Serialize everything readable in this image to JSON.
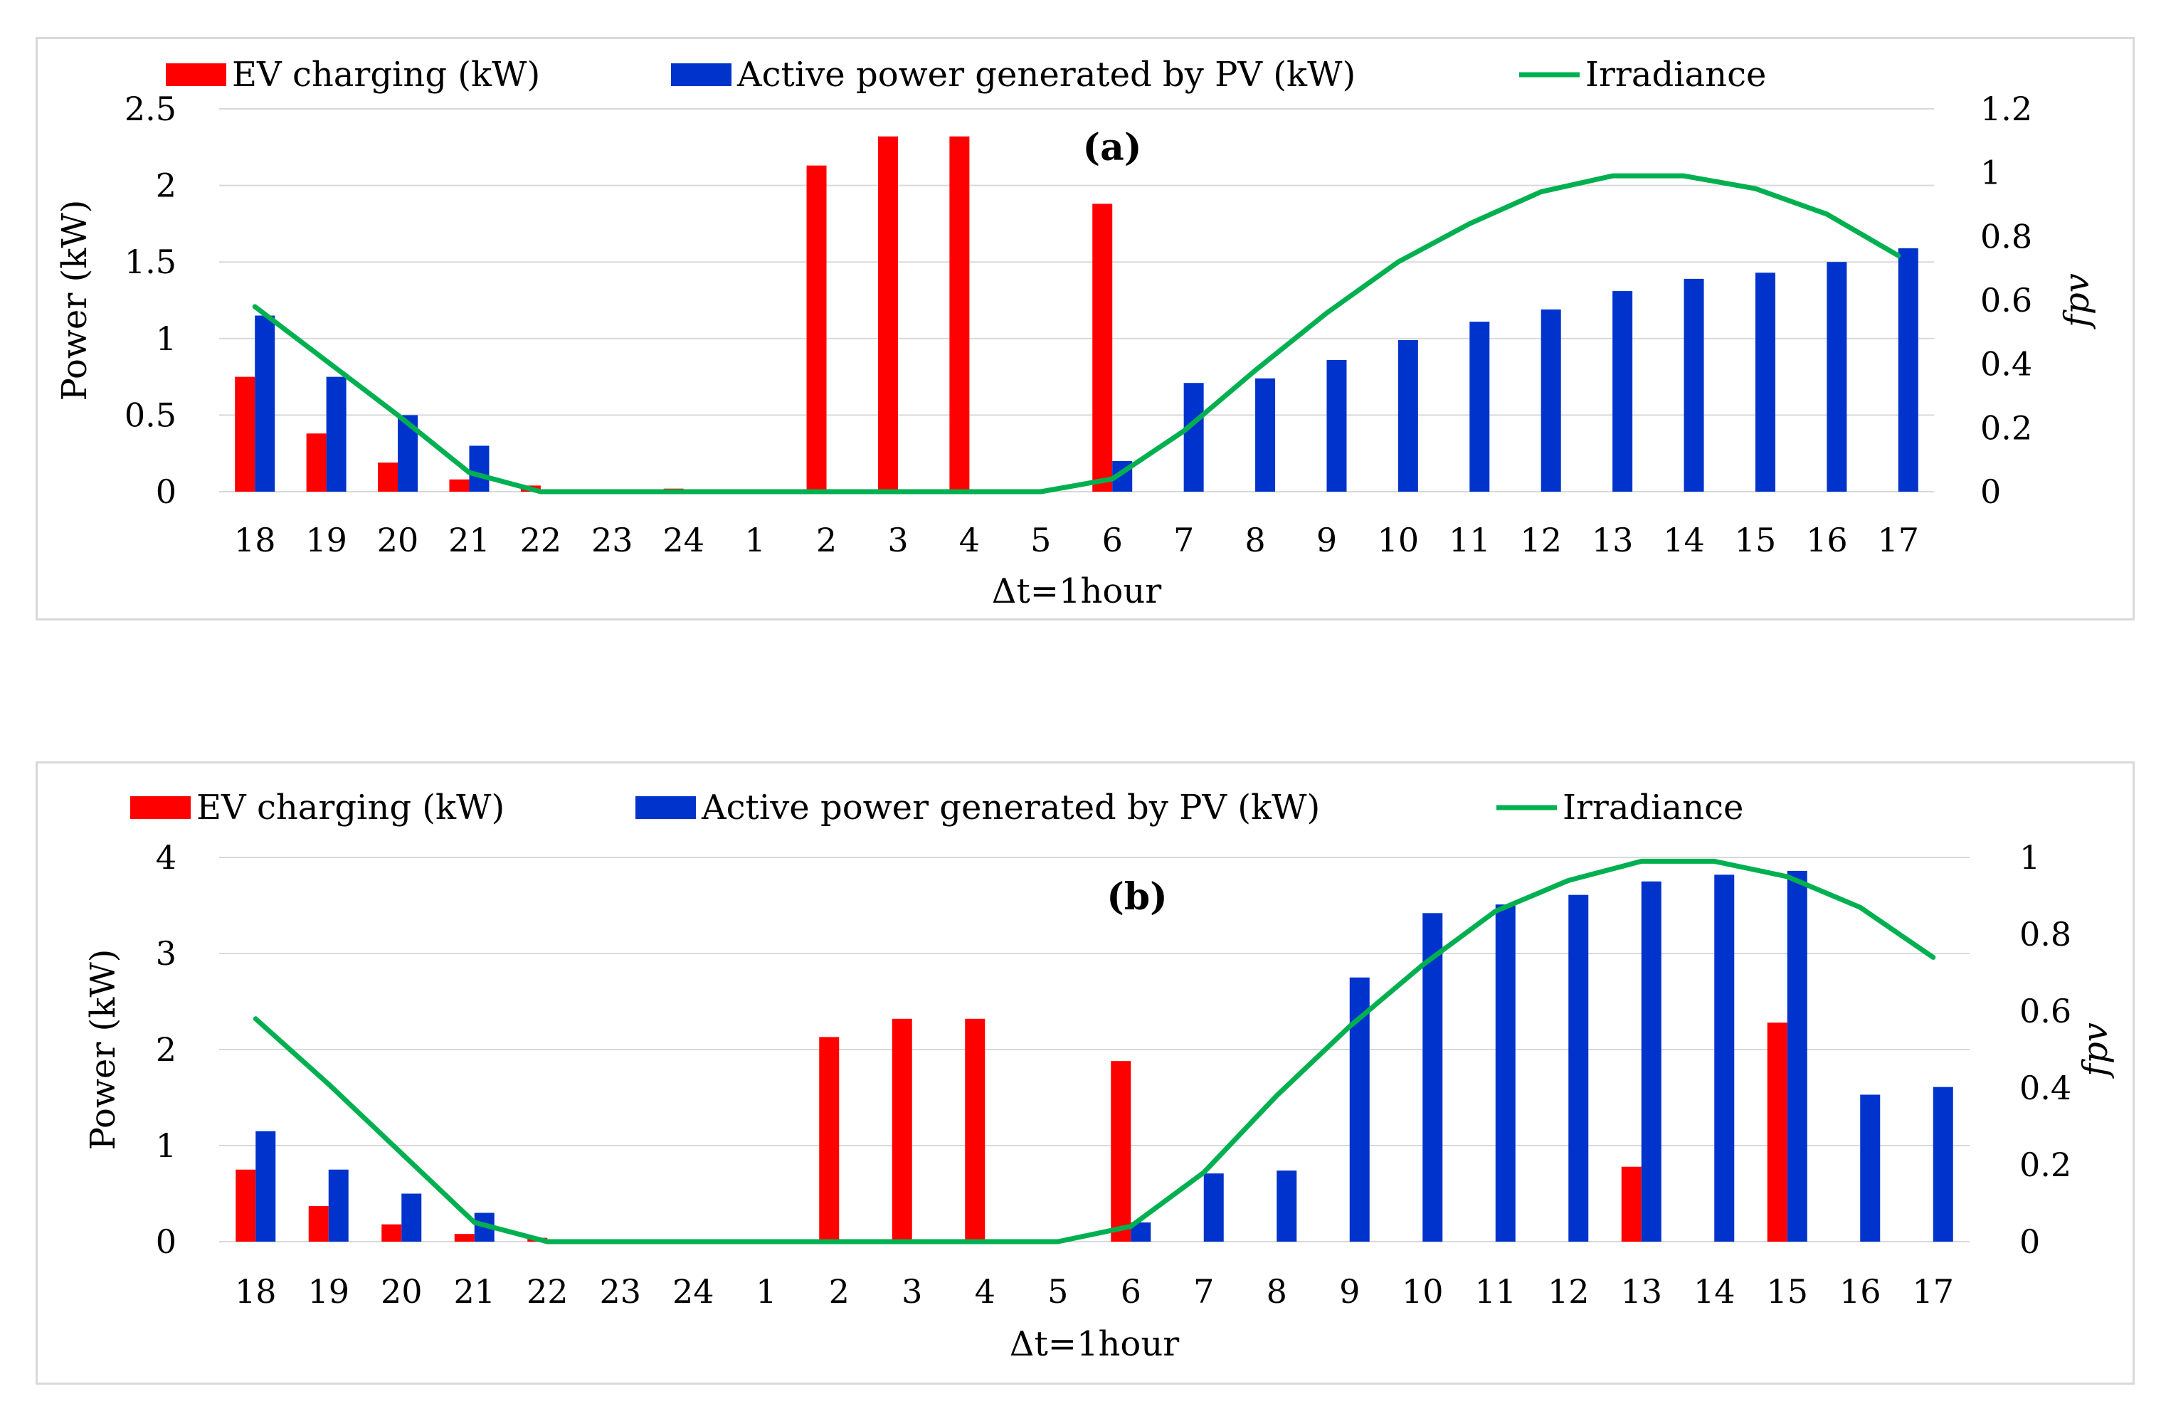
{
  "chart_data": [
    {
      "type": "bar",
      "panel_label": "(a)",
      "categories": [
        "18",
        "19",
        "20",
        "21",
        "22",
        "23",
        "24",
        "1",
        "2",
        "3",
        "4",
        "5",
        "6",
        "7",
        "8",
        "9",
        "10",
        "11",
        "12",
        "13",
        "14",
        "15",
        "16",
        "17"
      ],
      "series": [
        {
          "name": "EV charging (kW)",
          "type": "bar",
          "axis": "left",
          "color": "#ff0000",
          "values": [
            0.75,
            0.38,
            0.19,
            0.08,
            0.04,
            0.01,
            0.02,
            0,
            2.13,
            2.32,
            2.32,
            0,
            1.88,
            0,
            0,
            0,
            0,
            0,
            0,
            0,
            0,
            0,
            0,
            0
          ]
        },
        {
          "name": "Active power generated by PV (kW)",
          "type": "bar",
          "axis": "left",
          "color": "#0033cc",
          "values": [
            1.15,
            0.75,
            0.5,
            0.3,
            0,
            0,
            0,
            0,
            0,
            0,
            0,
            0,
            0.2,
            0.71,
            0.74,
            0.86,
            0.99,
            1.11,
            1.19,
            1.31,
            1.39,
            1.43,
            1.5,
            1.59
          ]
        },
        {
          "name": "Irradiance",
          "type": "line",
          "axis": "right",
          "color": "#00b050",
          "values": [
            0.58,
            0.41,
            0.24,
            0.06,
            0,
            0,
            0,
            0,
            0,
            0,
            0,
            0,
            0.04,
            0.19,
            0.38,
            0.56,
            0.72,
            0.84,
            0.94,
            0.99,
            0.99,
            0.95,
            0.87,
            0.74
          ]
        }
      ],
      "ylabel": "Power (kW)",
      "y2label": "fpv",
      "xlabel": "Δt=1hour",
      "ylim": [
        0,
        2.5
      ],
      "yticks": [
        "0",
        "0.5",
        "1",
        "1.5",
        "2",
        "2.5"
      ],
      "y2lim": [
        0,
        1.2
      ],
      "y2ticks": [
        "0",
        "0.2",
        "0.4",
        "0.6",
        "0.8",
        "1",
        "1.2"
      ],
      "legend_position": "top",
      "grid": true
    },
    {
      "type": "bar",
      "panel_label": "(b)",
      "categories": [
        "18",
        "19",
        "20",
        "21",
        "22",
        "23",
        "24",
        "1",
        "2",
        "3",
        "4",
        "5",
        "6",
        "7",
        "8",
        "9",
        "10",
        "11",
        "12",
        "13",
        "14",
        "15",
        "16",
        "17"
      ],
      "series": [
        {
          "name": "EV charging (kW)",
          "type": "bar",
          "axis": "left",
          "color": "#ff0000",
          "values": [
            0.75,
            0.37,
            0.18,
            0.08,
            0.04,
            0.01,
            0.02,
            0,
            2.13,
            2.32,
            2.32,
            0,
            1.88,
            0,
            0,
            0,
            0,
            0,
            0,
            0.78,
            0,
            2.28,
            0,
            0
          ]
        },
        {
          "name": "Active power generated by PV (kW)",
          "type": "bar",
          "axis": "left",
          "color": "#0033cc",
          "values": [
            1.15,
            0.75,
            0.5,
            0.3,
            0,
            0,
            0,
            0,
            0,
            0,
            0,
            0,
            0.2,
            0.71,
            0.74,
            2.75,
            3.42,
            3.51,
            3.61,
            3.75,
            3.82,
            3.86,
            1.53,
            1.61
          ]
        },
        {
          "name": "Irradiance",
          "type": "line",
          "axis": "right",
          "color": "#00b050",
          "values": [
            0.58,
            0.41,
            0.23,
            0.05,
            0,
            0,
            0,
            0,
            0,
            0,
            0,
            0,
            0.04,
            0.18,
            0.38,
            0.56,
            0.72,
            0.86,
            0.94,
            0.99,
            0.99,
            0.95,
            0.87,
            0.74
          ]
        }
      ],
      "ylabel": "Power (kW)",
      "y2label": "fpv",
      "xlabel": "Δt=1hour",
      "ylim": [
        0,
        4
      ],
      "yticks": [
        "0",
        "1",
        "2",
        "3",
        "4"
      ],
      "y2lim": [
        0,
        1
      ],
      "y2ticks": [
        "0",
        "0.2",
        "0.4",
        "0.6",
        "0.8",
        "1"
      ],
      "legend_position": "top",
      "grid": true
    }
  ]
}
